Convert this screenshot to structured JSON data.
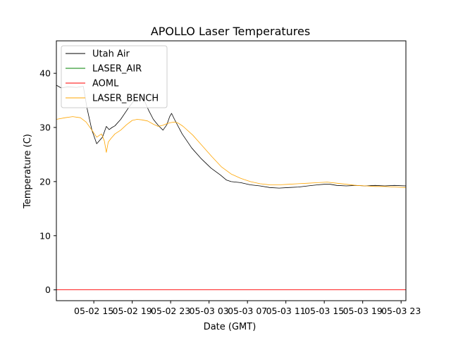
{
  "chart_data": {
    "type": "line",
    "title": "APOLLO Laser Temperatures",
    "xlabel": "Date (GMT)",
    "ylabel": "Temperature (C)",
    "xlim": [
      11.1,
      47.5
    ],
    "ylim": [
      -2,
      46
    ],
    "x_ticks": [
      {
        "value": 15,
        "label": "05-02 15"
      },
      {
        "value": 19,
        "label": "05-02 19"
      },
      {
        "value": 23,
        "label": "05-02 23"
      },
      {
        "value": 27,
        "label": "05-03 03"
      },
      {
        "value": 31,
        "label": "05-03 07"
      },
      {
        "value": 35,
        "label": "05-03 11"
      },
      {
        "value": 39,
        "label": "05-03 15"
      },
      {
        "value": 43,
        "label": "05-03 19"
      },
      {
        "value": 47,
        "label": "05-03 23"
      }
    ],
    "y_ticks": [
      0,
      10,
      20,
      30,
      40
    ],
    "legend_position": "top-left",
    "series": [
      {
        "name": "Utah Air",
        "color": "#000000",
        "x": [
          11.1,
          11.6,
          12.3,
          13.2,
          13.9,
          14.3,
          14.8,
          15.3,
          15.9,
          16.3,
          16.6,
          16.9,
          17.2,
          17.8,
          18.6,
          19.2,
          19.7,
          20.2,
          20.7,
          21.2,
          21.7,
          22.2,
          22.6,
          22.9,
          23.1,
          23.4,
          24.2,
          25.2,
          26.2,
          27.2,
          28.2,
          28.8,
          29.3,
          30.3,
          31.3,
          32.3,
          33.3,
          34.3,
          35.3,
          36.3,
          37.3,
          38.3,
          39.0,
          39.6,
          40.3,
          41.3,
          42.3,
          43.3,
          44.3,
          45.3,
          46.3,
          47.5
        ],
        "y": [
          37.8,
          37.3,
          37.5,
          37.4,
          37.6,
          33.5,
          29.5,
          27.0,
          28.2,
          30.2,
          29.6,
          30.0,
          30.3,
          31.5,
          33.6,
          35.0,
          35.5,
          35.2,
          33.2,
          31.5,
          30.4,
          29.5,
          30.5,
          32.0,
          32.6,
          31.5,
          28.8,
          26.2,
          24.2,
          22.5,
          21.2,
          20.3,
          20.0,
          19.8,
          19.4,
          19.2,
          18.9,
          18.8,
          18.9,
          19.0,
          19.2,
          19.4,
          19.5,
          19.5,
          19.3,
          19.2,
          19.3,
          19.2,
          19.3,
          19.2,
          19.3,
          19.2
        ]
      },
      {
        "name": "LASER_AIR",
        "color": "#008000",
        "x": [],
        "y": []
      },
      {
        "name": "AOML",
        "color": "#ff0000",
        "x": [
          11.1,
          47.5
        ],
        "y": [
          0.0,
          0.0
        ]
      },
      {
        "name": "LASER_BENCH",
        "color": "#ffa500",
        "x": [
          11.1,
          12.0,
          12.8,
          13.6,
          14.2,
          14.8,
          15.3,
          15.8,
          16.1,
          16.3,
          16.5,
          16.8,
          17.2,
          17.8,
          18.4,
          19.0,
          19.5,
          20.0,
          20.6,
          21.2,
          21.7,
          22.2,
          22.6,
          23.0,
          23.4,
          23.8,
          24.3,
          25.3,
          26.3,
          27.3,
          28.3,
          29.3,
          30.3,
          31.3,
          32.3,
          33.3,
          34.3,
          35.3,
          36.3,
          37.3,
          38.3,
          39.3,
          40.3,
          41.3,
          42.3,
          43.3,
          44.3,
          45.3,
          46.3,
          47.5
        ],
        "y": [
          31.5,
          31.8,
          32.0,
          31.8,
          31.0,
          29.5,
          28.2,
          28.8,
          27.5,
          25.4,
          27.3,
          28.0,
          28.8,
          29.5,
          30.5,
          31.3,
          31.5,
          31.4,
          31.2,
          30.6,
          30.2,
          30.4,
          30.7,
          30.9,
          31.0,
          30.8,
          30.2,
          28.6,
          26.6,
          24.6,
          22.7,
          21.4,
          20.6,
          20.0,
          19.6,
          19.4,
          19.4,
          19.5,
          19.6,
          19.7,
          19.8,
          19.9,
          19.7,
          19.5,
          19.3,
          19.2,
          19.1,
          19.1,
          19.0,
          18.9
        ]
      }
    ]
  }
}
